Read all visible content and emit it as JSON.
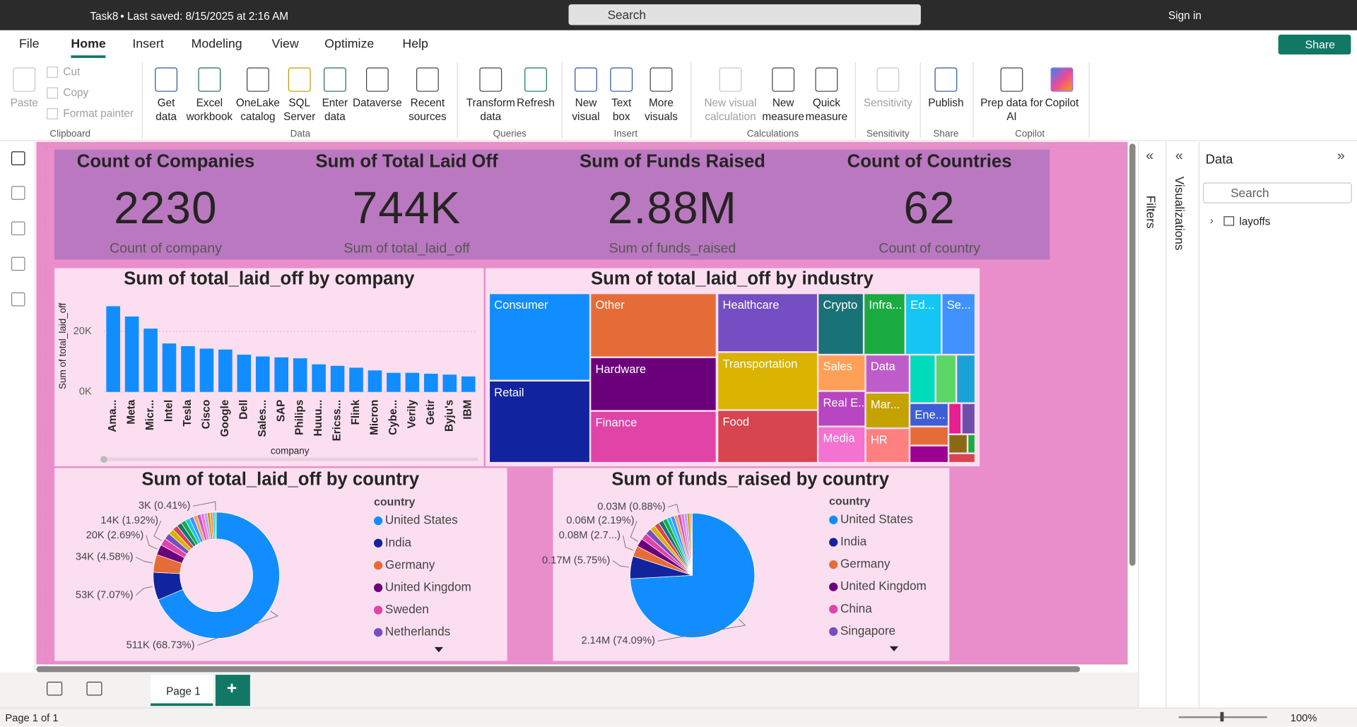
{
  "titlebar": {
    "file": "Task8",
    "saved": "Last saved: 8/15/2025 at 2:16 AM",
    "search": "Search",
    "signin": "Sign in"
  },
  "menu": [
    "File",
    "Home",
    "Insert",
    "Modeling",
    "View",
    "Optimize",
    "Help"
  ],
  "share": "Share",
  "ribbon": {
    "groups": [
      {
        "name": "Clipboard",
        "items": [
          "Paste",
          "Cut",
          "Copy",
          "Format painter"
        ]
      },
      {
        "name": "Data",
        "items": [
          "Get data",
          "Excel workbook",
          "OneLake catalog",
          "SQL Server",
          "Enter data",
          "Dataverse",
          "Recent sources"
        ]
      },
      {
        "name": "Queries",
        "items": [
          "Transform data",
          "Refresh"
        ]
      },
      {
        "name": "Insert",
        "items": [
          "New visual",
          "Text box",
          "More visuals"
        ]
      },
      {
        "name": "Calculations",
        "items": [
          "New visual calculation",
          "New measure",
          "Quick measure"
        ]
      },
      {
        "name": "Sensitivity",
        "items": [
          "Sensitivity"
        ]
      },
      {
        "name": "Share",
        "items": [
          "Publish"
        ]
      },
      {
        "name": "Copilot",
        "items": [
          "Prep data for AI",
          "Copilot"
        ]
      }
    ]
  },
  "cards": [
    {
      "title": "Count of Companies",
      "value": "2230",
      "label": "Count of company"
    },
    {
      "title": "Sum of Total Laid Off",
      "value": "744K",
      "label": "Sum of total_laid_off"
    },
    {
      "title": "Sum of Funds Raised",
      "value": "2.88M",
      "label": "Sum of funds_raised"
    },
    {
      "title": "Count of Countries",
      "value": "62",
      "label": "Count of country"
    }
  ],
  "bar_chart": {
    "type": "bar",
    "title": "Sum of total_laid_off by company",
    "x_label": "company",
    "y_label": "Sum of total_laid_off",
    "categories": [
      "Ama...",
      "Meta",
      "Micr...",
      "Intel",
      "Tesla",
      "Cisco",
      "Google",
      "Dell",
      "Sales...",
      "SAP",
      "Philips",
      "Huuu...",
      "Ericss...",
      "Flink",
      "Micron",
      "Cybe...",
      "Verily",
      "Getir",
      "Byju's",
      "IBM"
    ],
    "values": [
      28300,
      24900,
      20900,
      16000,
      15100,
      14300,
      14000,
      12300,
      11700,
      11400,
      11100,
      9100,
      8600,
      8000,
      7100,
      6300,
      6300,
      6000,
      5700,
      5100
    ],
    "color": "#118DFF",
    "ylim": [
      0,
      31000
    ],
    "yticks": [
      {
        "value": 0,
        "label": "0K"
      },
      {
        "value": 20000,
        "label": "20K"
      }
    ],
    "grid": true
  },
  "treemap": {
    "type": "treemap",
    "title": "Sum of total_laid_off by industry",
    "tiles": [
      {
        "label": "Consumer",
        "color": "#118DFF"
      },
      {
        "label": "Retail",
        "color": "#12239E"
      },
      {
        "label": "Other",
        "color": "#E66C37"
      },
      {
        "label": "Hardware",
        "color": "#6B007B"
      },
      {
        "label": "Finance",
        "color": "#E044A7"
      },
      {
        "label": "Healthcare",
        "color": "#744EC2"
      },
      {
        "label": "Transportation",
        "color": "#D9B300"
      },
      {
        "label": "Food",
        "color": "#D64550"
      },
      {
        "label": "Crypto",
        "color": "#197278"
      },
      {
        "label": "Infra...",
        "color": "#1AAB40"
      },
      {
        "label": "Ed...",
        "color": "#15C6F4"
      },
      {
        "label": "Se...",
        "color": "#4092FF"
      },
      {
        "label": "Sales",
        "color": "#FFA058"
      },
      {
        "label": "Data",
        "color": "#BE5DC9"
      },
      {
        "label": "Real E...",
        "color": "#B845C1"
      },
      {
        "label": "Mar...",
        "color": "#C4A200"
      },
      {
        "label": "Media",
        "color": "#F472D0"
      },
      {
        "label": "HR",
        "color": "#FF8080"
      },
      {
        "label": null,
        "color": "#00DBBC"
      },
      {
        "label": null,
        "color": "#5BD667"
      },
      {
        "label": null,
        "color": "#1AA1D5"
      },
      {
        "label": "Ene...",
        "color": "#3D5FD6"
      },
      {
        "label": null,
        "color": "#E66C37"
      },
      {
        "label": null,
        "color": "#9B0090"
      },
      {
        "label": null,
        "color": "#E61E8F"
      },
      {
        "label": null,
        "color": "#6E4FA8"
      },
      {
        "label": null,
        "color": "#8B6914"
      },
      {
        "label": null,
        "color": "#1AAB40"
      },
      {
        "label": null,
        "color": "#D64550"
      }
    ]
  },
  "donut_chart": {
    "type": "donut",
    "title": "Sum of total_laid_off by country",
    "legend_title": "country",
    "categories": [
      "United States",
      "India",
      "Germany",
      "United Kingdom",
      "Sweden",
      "Netherlands",
      null,
      null,
      null,
      null,
      null,
      null,
      null,
      null,
      null,
      null,
      null,
      null,
      null,
      null
    ],
    "values": [
      511000,
      53000,
      34000,
      20000,
      14000,
      12000,
      11000,
      10000,
      9500,
      9000,
      8500,
      8000,
      7500,
      7000,
      6500,
      6000,
      5500,
      5000,
      4000,
      3000
    ],
    "value_labels": [
      "511K (68.73%)",
      "53K (7.07%)",
      "34K (4.58%)",
      "20K (2.69%)",
      "14K (1.92%)",
      null,
      null,
      null,
      null,
      null,
      null,
      null,
      null,
      null,
      null,
      null,
      null,
      null,
      null,
      "3K (0.41%)"
    ],
    "colors": [
      "#118DFF",
      "#12239E",
      "#E66C37",
      "#6B007B",
      "#E044A7",
      "#744EC2",
      "#D9B300",
      "#D64550",
      "#197278",
      "#1AAB40",
      "#15C6F4",
      "#4092FF",
      "#FFA058",
      "#BE5DC9",
      "#F472D0",
      "#B5A1FF",
      "#C4A200",
      "#FF8080",
      "#00DBBC",
      "#5BD667"
    ]
  },
  "pie_chart": {
    "type": "pie",
    "title": "Sum of funds_raised by country",
    "legend_title": "country",
    "categories": [
      "United States",
      "India",
      "Germany",
      "United Kingdom",
      "China",
      "Singapore",
      null,
      null,
      null,
      null,
      null,
      null,
      null,
      null,
      null,
      null,
      null,
      null,
      null
    ],
    "values": [
      2140000,
      170000,
      80000,
      63000,
      50000,
      45000,
      40000,
      38000,
      35000,
      32000,
      30000,
      28000,
      26000,
      25000,
      24000,
      22000,
      20000,
      12000,
      8000
    ],
    "value_labels": [
      "2.14M (74.09%)",
      "0.17M (5.75%)",
      "0.08M (2.7...)",
      "0.06M (2.19%)",
      null,
      null,
      null,
      null,
      null,
      null,
      null,
      null,
      null,
      "0.03M (0.88%)",
      null,
      null,
      null,
      null,
      null
    ],
    "colors": [
      "#118DFF",
      "#12239E",
      "#E66C37",
      "#6B007B",
      "#E044A7",
      "#744EC2",
      "#D9B300",
      "#D64550",
      "#197278",
      "#1AAB40",
      "#15C6F4",
      "#4092FF",
      "#FFA058",
      "#BE5DC9",
      "#F472D0",
      "#B5A1FF",
      "#C4A200",
      "#FF8080",
      "#00DBBC"
    ]
  },
  "panes": {
    "filters": "Filters",
    "visualizations": "Visualizations",
    "data": "Data",
    "search": "Search",
    "table": "layoffs"
  },
  "footer": {
    "page": "Page 1",
    "add": "+",
    "status": "Page 1 of 1",
    "zoom": "100%"
  }
}
